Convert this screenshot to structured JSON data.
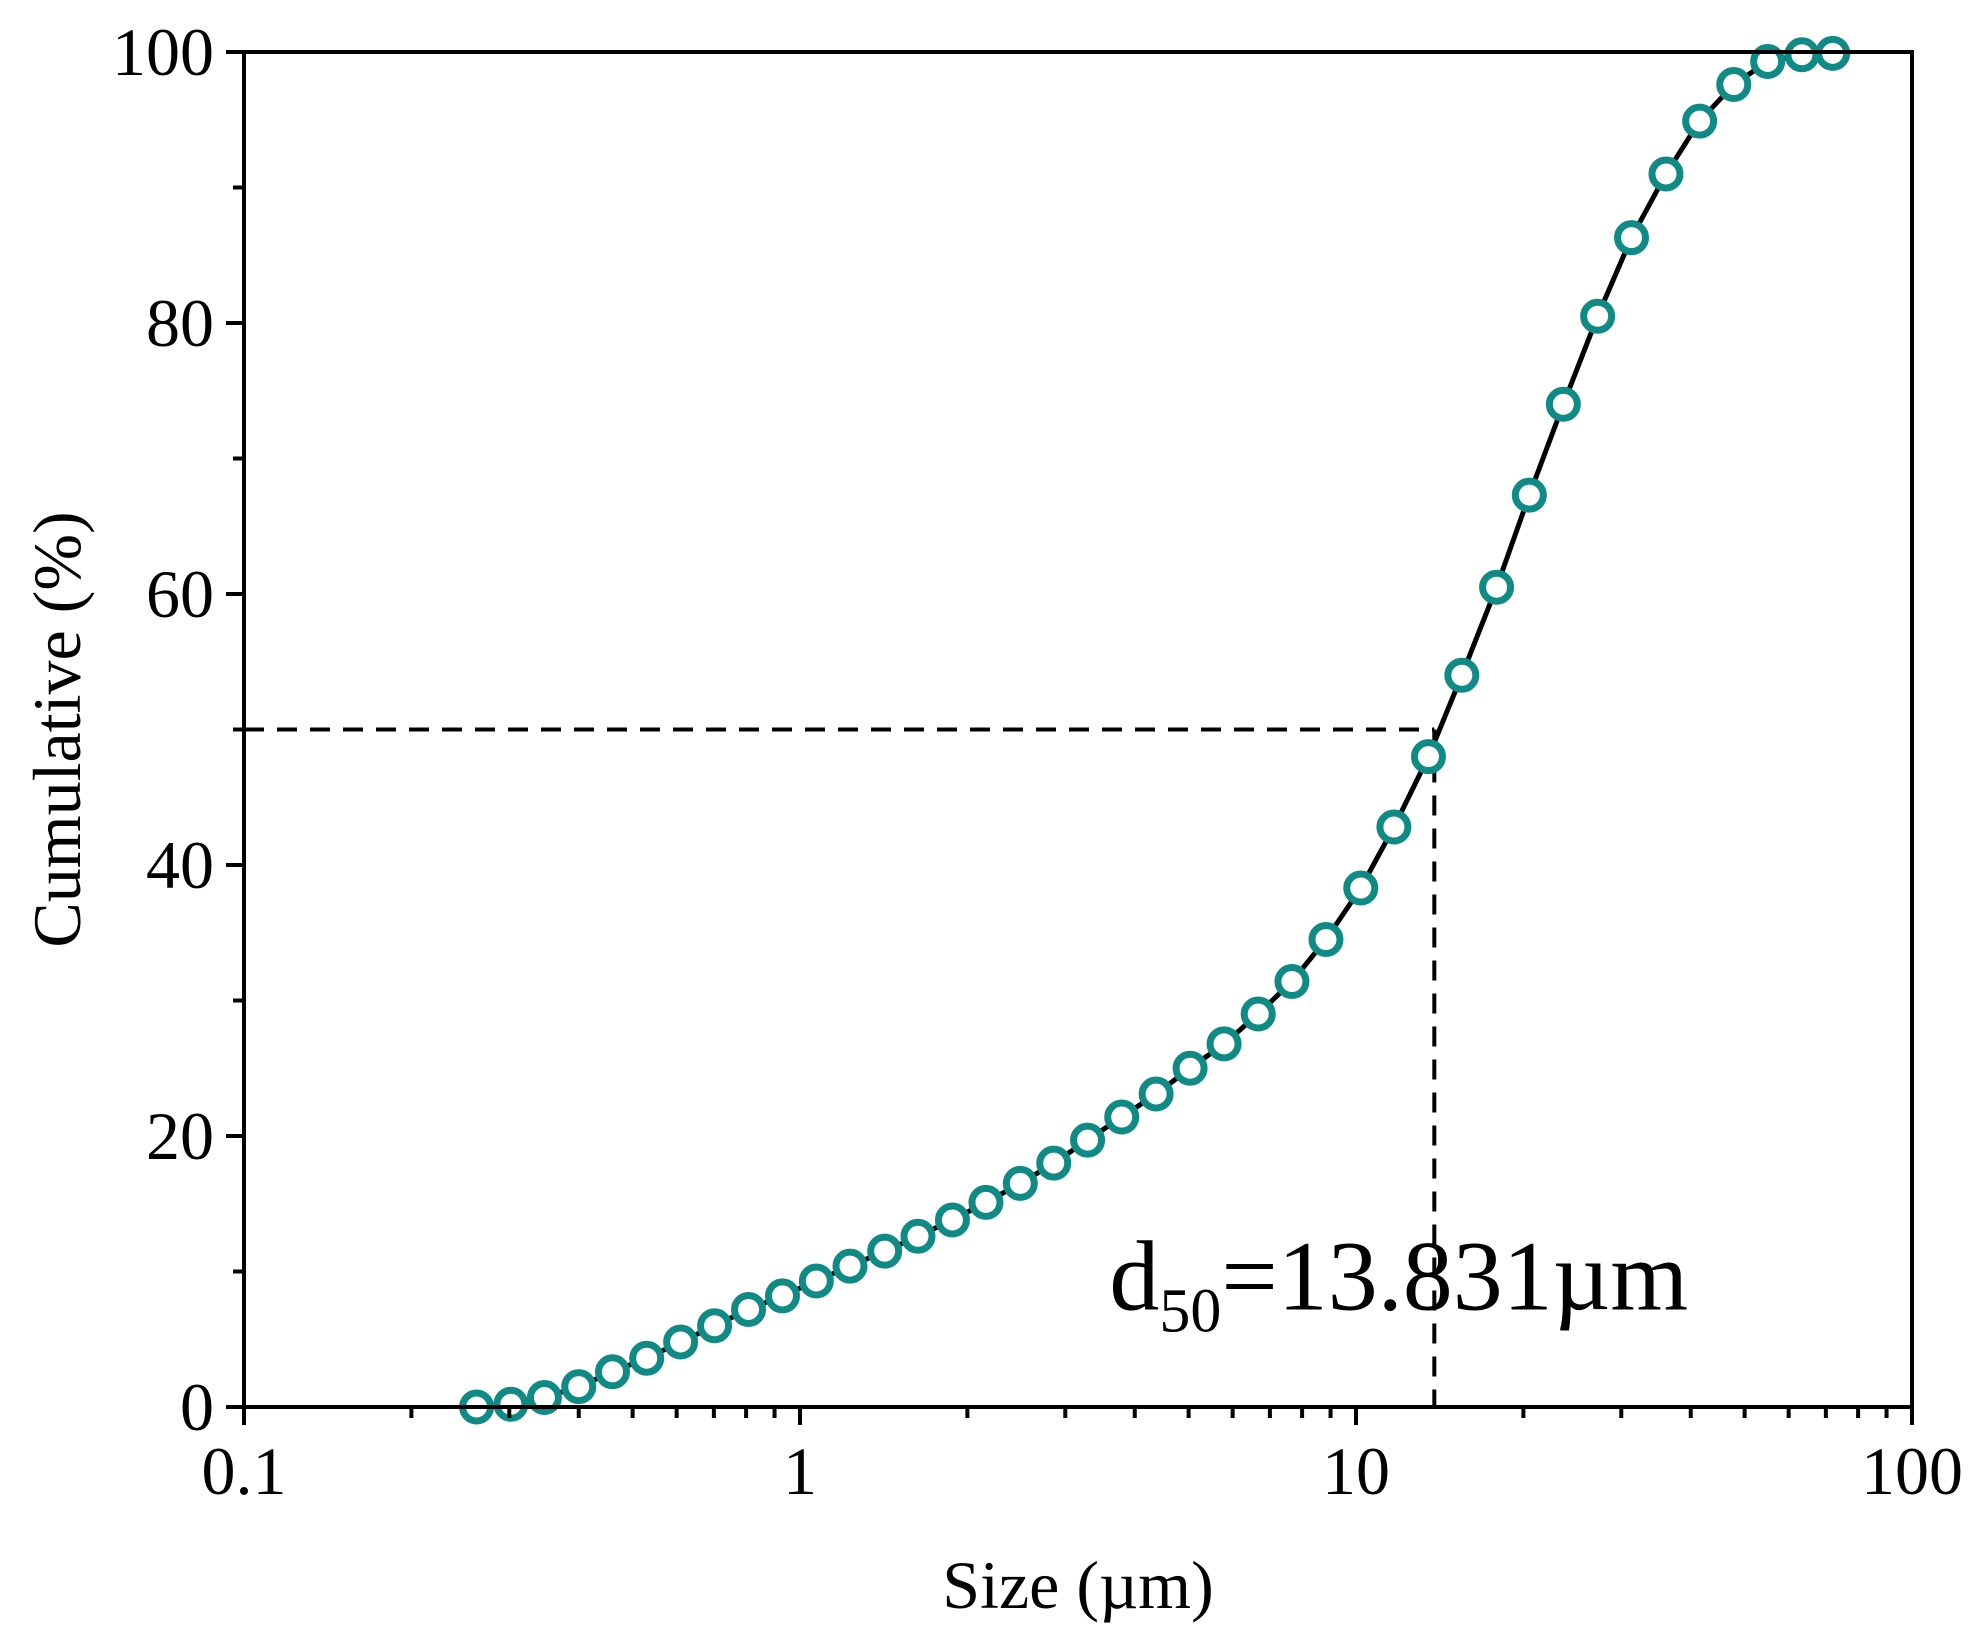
{
  "chart_data": {
    "type": "scatter",
    "title": "",
    "xlabel": "Size (µm)",
    "ylabel": "Cumulative  (%)",
    "xscale": "log",
    "xlim": [
      0.1,
      100
    ],
    "ylim": [
      0,
      100
    ],
    "x_ticks": [
      0.1,
      1,
      10,
      100
    ],
    "x_tick_labels": [
      "0.1",
      "1",
      "10",
      "100"
    ],
    "y_ticks": [
      0,
      20,
      40,
      60,
      80,
      100
    ],
    "y_tick_labels": [
      "0",
      "20",
      "40",
      "60",
      "80",
      "100"
    ],
    "grid": false,
    "legend": "none",
    "series": [
      {
        "name": "Cumulative",
        "marker": "open-circle",
        "line": "solid",
        "color": "#0f8a84",
        "line_color": "#000000",
        "x": [
          0.262,
          0.302,
          0.347,
          0.4,
          0.46,
          0.53,
          0.61,
          0.702,
          0.808,
          0.93,
          1.07,
          1.23,
          1.42,
          1.63,
          1.88,
          2.16,
          2.49,
          2.86,
          3.29,
          3.79,
          4.37,
          5.03,
          5.79,
          6.67,
          7.67,
          8.83,
          10.2,
          11.7,
          13.5,
          15.5,
          17.9,
          20.5,
          23.6,
          27.2,
          31.3,
          36.1,
          41.5,
          47.8,
          55.0,
          63.4,
          72.0
        ],
        "y": [
          0.0,
          0.2,
          0.7,
          1.5,
          2.6,
          3.6,
          4.8,
          6.0,
          7.2,
          8.2,
          9.3,
          10.4,
          11.5,
          12.6,
          13.8,
          15.1,
          16.5,
          18.0,
          19.7,
          21.4,
          23.1,
          25.0,
          26.8,
          29.0,
          31.4,
          34.5,
          38.3,
          42.8,
          48.0,
          54.0,
          60.5,
          67.3,
          74.0,
          80.5,
          86.3,
          91.0,
          94.9,
          97.6,
          99.3,
          99.8,
          99.9
        ]
      }
    ],
    "annotations": [
      {
        "type": "reference-lines",
        "style": "dashed",
        "x": 13.831,
        "y": 50
      },
      {
        "type": "text",
        "text_main": "d",
        "text_sub": "50",
        "text_rest": "=13.831µm",
        "at_x": 13.831,
        "at_y": 10
      }
    ]
  }
}
